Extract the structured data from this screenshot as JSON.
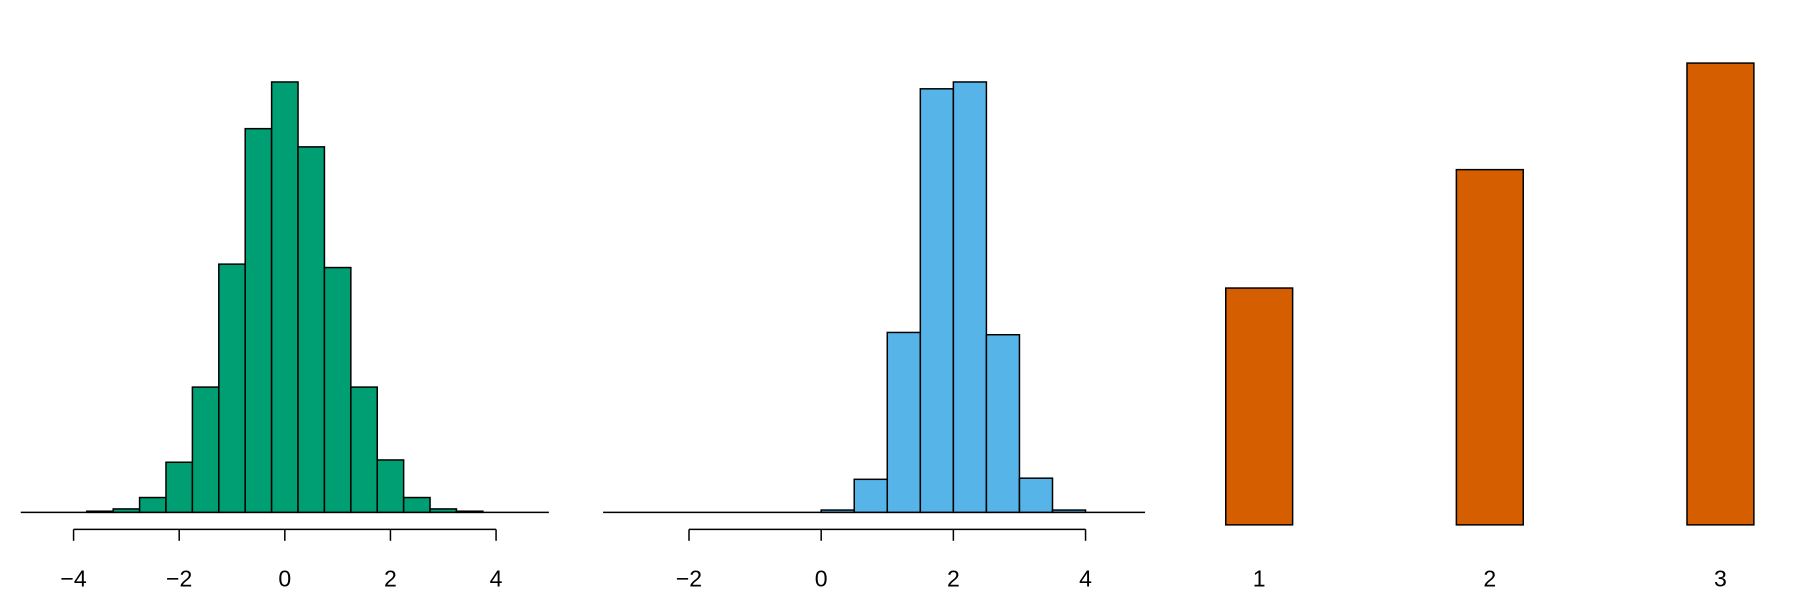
{
  "chart_data": [
    {
      "type": "histogram",
      "color": "#009E73",
      "bins": [
        -3.75,
        -3.25,
        -2.75,
        -2.25,
        -1.75,
        -1.25,
        -0.75,
        -0.25,
        0.25,
        0.75,
        1.25,
        1.75,
        2.25,
        2.75,
        3.25,
        3.75
      ],
      "values": [
        1,
        3,
        13,
        44,
        110,
        218,
        337,
        378,
        321,
        215,
        110,
        46,
        13,
        3,
        1
      ],
      "xlim": [
        -5,
        5
      ],
      "ylim": [
        0,
        420
      ],
      "xticks": [
        {
          "value": -4,
          "label": "−4"
        },
        {
          "value": -2,
          "label": "−2"
        },
        0,
        2,
        4
      ]
    },
    {
      "type": "histogram",
      "color": "#56B4E9",
      "bins": [
        0,
        0.5,
        1,
        1.5,
        2,
        2.5,
        3,
        3.5,
        4
      ],
      "values": [
        2,
        29,
        158,
        372,
        378,
        156,
        30,
        2
      ],
      "xlim": [
        -3.3,
        4.9
      ],
      "ylim": [
        0,
        420
      ],
      "xticks": [
        {
          "value": -2,
          "label": "−2"
        },
        0,
        2,
        4
      ]
    },
    {
      "type": "bar",
      "color": "#D55E00",
      "categories": [
        "1",
        "2",
        "3"
      ],
      "values": [
        2,
        3,
        3.9
      ],
      "ylim": [
        0,
        4
      ]
    }
  ]
}
